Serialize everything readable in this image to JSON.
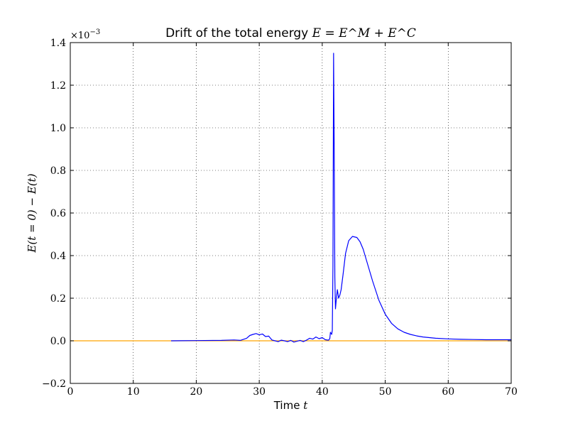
{
  "chart_data": {
    "type": "line",
    "title_text": "Drift of the total energy ",
    "title_math": "E = E^M + E^C",
    "xlabel_text": "Time ",
    "xlabel_math": "t",
    "ylabel": "E(t = 0) − E(t)",
    "y_offset_base": "×10",
    "y_offset_exp": "−3",
    "xlim": [
      0,
      70
    ],
    "ylim": [
      -0.2,
      1.4
    ],
    "grid": true,
    "x_ticks": [
      0,
      10,
      20,
      30,
      40,
      50,
      60,
      70
    ],
    "x_tick_labels": [
      "0",
      "10",
      "20",
      "30",
      "40",
      "50",
      "60",
      "70"
    ],
    "y_ticks": [
      -0.2,
      0.0,
      0.2,
      0.4,
      0.6,
      0.8,
      1.0,
      1.2,
      1.4
    ],
    "y_tick_labels": [
      "−0.2",
      "0.0",
      "0.2",
      "0.4",
      "0.6",
      "0.8",
      "1.0",
      "1.2",
      "1.4"
    ],
    "series": [
      {
        "color": "#0000ff",
        "x": [
          16,
          20,
          24,
          26,
          27,
          28,
          28.5,
          29,
          29.5,
          30,
          30.5,
          31,
          31.5,
          32,
          32.5,
          33,
          33.5,
          34,
          34.5,
          35,
          35.5,
          36,
          36.5,
          37,
          37.5,
          38,
          38.5,
          39,
          39.5,
          40,
          40.5,
          41,
          41.2,
          41.3,
          41.5,
          41.6,
          41.7,
          41.8,
          41.9,
          42.0,
          42.1,
          42.25,
          42.4,
          42.6,
          42.8,
          43.0,
          43.3,
          43.7,
          44.2,
          44.8,
          45.5,
          46.0,
          46.5,
          47.0,
          47.5,
          48.0,
          49.0,
          50.0,
          51.0,
          52.0,
          53.0,
          54.0,
          55.0,
          56.0,
          58.0,
          60.0,
          62.0,
          64.0,
          66.0,
          68.0,
          70.0
        ],
        "y": [
          0.0,
          0.001,
          0.002,
          0.004,
          0.002,
          0.012,
          0.025,
          0.03,
          0.034,
          0.028,
          0.032,
          0.02,
          0.022,
          0.004,
          0.0,
          -0.004,
          0.003,
          0.0,
          -0.004,
          0.002,
          -0.006,
          -0.002,
          0.002,
          -0.004,
          0.003,
          0.012,
          0.008,
          0.018,
          0.01,
          0.015,
          0.005,
          0.003,
          0.01,
          0.04,
          0.03,
          0.05,
          0.35,
          1.35,
          0.9,
          0.3,
          0.15,
          0.2,
          0.24,
          0.2,
          0.215,
          0.24,
          0.31,
          0.41,
          0.47,
          0.49,
          0.485,
          0.465,
          0.43,
          0.38,
          0.33,
          0.28,
          0.19,
          0.125,
          0.082,
          0.056,
          0.04,
          0.03,
          0.023,
          0.018,
          0.012,
          0.009,
          0.007,
          0.006,
          0.005,
          0.005,
          0.005
        ]
      },
      {
        "color": "#ffa500",
        "x": [
          0,
          70
        ],
        "y": [
          0.0,
          0.0
        ]
      }
    ]
  }
}
